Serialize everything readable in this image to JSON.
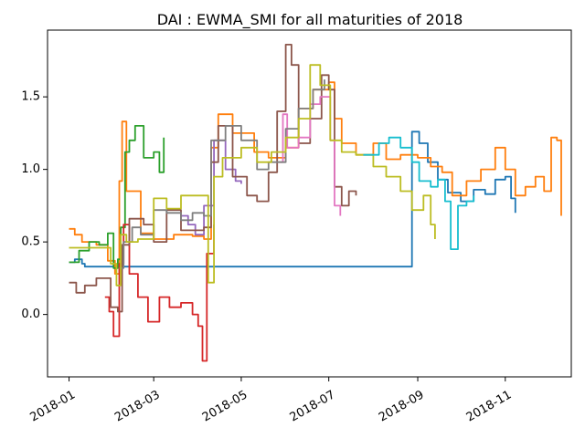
{
  "chart_data": {
    "type": "line",
    "title": "DAI : EWMA_SMI for all maturities of 2018",
    "xlabel": "",
    "ylabel": "",
    "x_ticks": [
      "2018-01",
      "2018-03",
      "2018-05",
      "2018-07",
      "2018-09",
      "2018-11"
    ],
    "y_ticks": [
      0.0,
      0.5,
      1.0,
      1.5
    ],
    "xlim": [
      "2017-12-17",
      "2018-12-17"
    ],
    "ylim": [
      -0.43,
      1.96
    ],
    "grid": false,
    "legend": "none",
    "series": [
      {
        "color": "#1f77b4",
        "points": [
          [
            "2018-01-01",
            0.36
          ],
          [
            "2018-01-05",
            0.38
          ],
          [
            "2018-01-10",
            0.35
          ],
          [
            "2018-01-12",
            0.33
          ],
          [
            "2018-08-28",
            1.26
          ],
          [
            "2018-09-02",
            1.18
          ],
          [
            "2018-09-08",
            1.05
          ],
          [
            "2018-09-15",
            0.93
          ],
          [
            "2018-09-22",
            0.84
          ],
          [
            "2018-10-01",
            0.78
          ],
          [
            "2018-10-10",
            0.86
          ],
          [
            "2018-10-18",
            0.83
          ],
          [
            "2018-10-25",
            0.93
          ],
          [
            "2018-11-01",
            0.95
          ],
          [
            "2018-11-05",
            0.8
          ],
          [
            "2018-11-08",
            0.7
          ]
        ]
      },
      {
        "color": "#ff7f0e",
        "points": [
          [
            "2018-01-01",
            0.59
          ],
          [
            "2018-01-05",
            0.55
          ],
          [
            "2018-01-10",
            0.5
          ],
          [
            "2018-01-20",
            0.48
          ],
          [
            "2018-01-28",
            0.37
          ],
          [
            "2018-02-02",
            0.28
          ],
          [
            "2018-02-05",
            0.92
          ],
          [
            "2018-02-07",
            1.33
          ],
          [
            "2018-02-10",
            0.85
          ],
          [
            "2018-02-20",
            0.56
          ],
          [
            "2018-03-01",
            0.52
          ],
          [
            "2018-03-15",
            0.55
          ],
          [
            "2018-03-28",
            0.54
          ],
          [
            "2018-04-05",
            0.52
          ],
          [
            "2018-04-10",
            1.15
          ],
          [
            "2018-04-15",
            1.38
          ],
          [
            "2018-04-25",
            1.25
          ],
          [
            "2018-05-10",
            1.12
          ],
          [
            "2018-05-20",
            1.08
          ],
          [
            "2018-06-01",
            1.15
          ],
          [
            "2018-06-10",
            1.42
          ],
          [
            "2018-06-20",
            1.55
          ],
          [
            "2018-07-01",
            1.6
          ],
          [
            "2018-07-05",
            1.35
          ],
          [
            "2018-07-10",
            1.18
          ],
          [
            "2018-07-20",
            1.1
          ],
          [
            "2018-08-01",
            1.18
          ],
          [
            "2018-08-10",
            1.07
          ],
          [
            "2018-08-20",
            1.1
          ],
          [
            "2018-09-01",
            1.08
          ],
          [
            "2018-09-10",
            1.02
          ],
          [
            "2018-09-18",
            0.98
          ],
          [
            "2018-09-25",
            0.82
          ],
          [
            "2018-10-05",
            0.92
          ],
          [
            "2018-10-15",
            1.0
          ],
          [
            "2018-10-25",
            1.15
          ],
          [
            "2018-11-01",
            1.0
          ],
          [
            "2018-11-08",
            0.82
          ],
          [
            "2018-11-15",
            0.88
          ],
          [
            "2018-11-22",
            0.95
          ],
          [
            "2018-11-28",
            0.85
          ],
          [
            "2018-12-03",
            1.22
          ],
          [
            "2018-12-07",
            1.2
          ],
          [
            "2018-12-10",
            0.68
          ]
        ]
      },
      {
        "color": "#2ca02c",
        "points": [
          [
            "2018-01-01",
            0.36
          ],
          [
            "2018-01-08",
            0.44
          ],
          [
            "2018-01-15",
            0.5
          ],
          [
            "2018-01-22",
            0.48
          ],
          [
            "2018-01-28",
            0.56
          ],
          [
            "2018-02-01",
            0.32
          ],
          [
            "2018-02-04",
            0.38
          ],
          [
            "2018-02-06",
            0.6
          ],
          [
            "2018-02-09",
            1.12
          ],
          [
            "2018-02-12",
            1.2
          ],
          [
            "2018-02-16",
            1.3
          ],
          [
            "2018-02-22",
            1.08
          ],
          [
            "2018-03-01",
            1.12
          ],
          [
            "2018-03-05",
            0.98
          ],
          [
            "2018-03-08",
            1.22
          ]
        ]
      },
      {
        "color": "#d62728",
        "points": [
          [
            "2018-01-26",
            0.12
          ],
          [
            "2018-01-29",
            0.02
          ],
          [
            "2018-02-01",
            -0.15
          ],
          [
            "2018-02-05",
            0.35
          ],
          [
            "2018-02-08",
            0.62
          ],
          [
            "2018-02-12",
            0.28
          ],
          [
            "2018-02-18",
            0.12
          ],
          [
            "2018-02-25",
            -0.05
          ],
          [
            "2018-03-05",
            0.12
          ],
          [
            "2018-03-12",
            0.05
          ],
          [
            "2018-03-20",
            0.08
          ],
          [
            "2018-03-28",
            0.0
          ],
          [
            "2018-04-01",
            -0.08
          ],
          [
            "2018-04-04",
            -0.32
          ],
          [
            "2018-04-07",
            0.42
          ],
          [
            "2018-04-12",
            0.62
          ]
        ]
      },
      {
        "color": "#9467bd",
        "points": [
          [
            "2018-03-20",
            0.68
          ],
          [
            "2018-03-25",
            0.62
          ],
          [
            "2018-03-30",
            0.55
          ],
          [
            "2018-04-05",
            0.75
          ],
          [
            "2018-04-12",
            1.2
          ],
          [
            "2018-04-20",
            1.0
          ],
          [
            "2018-04-27",
            0.92
          ],
          [
            "2018-05-01",
            0.9
          ]
        ]
      },
      {
        "color": "#8c564b",
        "points": [
          [
            "2018-01-01",
            0.22
          ],
          [
            "2018-01-06",
            0.15
          ],
          [
            "2018-01-12",
            0.2
          ],
          [
            "2018-01-20",
            0.25
          ],
          [
            "2018-01-30",
            0.05
          ],
          [
            "2018-02-04",
            0.02
          ],
          [
            "2018-02-07",
            0.48
          ],
          [
            "2018-02-12",
            0.66
          ],
          [
            "2018-02-22",
            0.62
          ],
          [
            "2018-03-01",
            0.5
          ],
          [
            "2018-03-10",
            0.72
          ],
          [
            "2018-03-20",
            0.58
          ],
          [
            "2018-04-05",
            0.6
          ],
          [
            "2018-04-10",
            1.05
          ],
          [
            "2018-04-15",
            1.3
          ],
          [
            "2018-04-25",
            0.95
          ],
          [
            "2018-05-05",
            0.82
          ],
          [
            "2018-05-12",
            0.78
          ],
          [
            "2018-05-20",
            0.98
          ],
          [
            "2018-05-26",
            1.4
          ],
          [
            "2018-06-01",
            1.86
          ],
          [
            "2018-06-05",
            1.72
          ],
          [
            "2018-06-10",
            1.18
          ],
          [
            "2018-06-18",
            1.35
          ],
          [
            "2018-06-26",
            1.65
          ],
          [
            "2018-07-01",
            1.55
          ],
          [
            "2018-07-05",
            0.88
          ],
          [
            "2018-07-10",
            0.75
          ],
          [
            "2018-07-15",
            0.85
          ],
          [
            "2018-07-20",
            0.82
          ]
        ]
      },
      {
        "color": "#e377c2",
        "points": [
          [
            "2018-05-28",
            1.05
          ],
          [
            "2018-05-30",
            1.38
          ],
          [
            "2018-06-02",
            1.15
          ],
          [
            "2018-06-10",
            1.22
          ],
          [
            "2018-06-18",
            1.45
          ],
          [
            "2018-06-25",
            1.5
          ],
          [
            "2018-07-02",
            1.2
          ],
          [
            "2018-07-05",
            0.75
          ],
          [
            "2018-07-09",
            0.68
          ]
        ]
      },
      {
        "color": "#7f7f7f",
        "points": [
          [
            "2018-02-05",
            0.32
          ],
          [
            "2018-02-08",
            0.5
          ],
          [
            "2018-02-14",
            0.6
          ],
          [
            "2018-02-20",
            0.55
          ],
          [
            "2018-03-01",
            0.72
          ],
          [
            "2018-03-10",
            0.7
          ],
          [
            "2018-03-20",
            0.65
          ],
          [
            "2018-03-28",
            0.7
          ],
          [
            "2018-04-05",
            0.68
          ],
          [
            "2018-04-10",
            1.2
          ],
          [
            "2018-04-20",
            1.3
          ],
          [
            "2018-05-01",
            1.2
          ],
          [
            "2018-05-12",
            1.0
          ],
          [
            "2018-05-20",
            1.05
          ],
          [
            "2018-06-01",
            1.28
          ],
          [
            "2018-06-10",
            1.42
          ],
          [
            "2018-06-20",
            1.55
          ],
          [
            "2018-06-28",
            1.62
          ]
        ]
      },
      {
        "color": "#bcbd22",
        "points": [
          [
            "2018-01-01",
            0.46
          ],
          [
            "2018-01-15",
            0.46
          ],
          [
            "2018-01-25",
            0.46
          ],
          [
            "2018-01-30",
            0.35
          ],
          [
            "2018-02-03",
            0.2
          ],
          [
            "2018-02-06",
            0.55
          ],
          [
            "2018-02-10",
            0.5
          ],
          [
            "2018-02-18",
            0.52
          ],
          [
            "2018-03-01",
            0.8
          ],
          [
            "2018-03-10",
            0.73
          ],
          [
            "2018-03-20",
            0.82
          ],
          [
            "2018-04-01",
            0.82
          ],
          [
            "2018-04-08",
            0.22
          ],
          [
            "2018-04-12",
            0.95
          ],
          [
            "2018-04-18",
            1.08
          ],
          [
            "2018-05-01",
            1.15
          ],
          [
            "2018-05-12",
            1.05
          ],
          [
            "2018-05-22",
            1.12
          ],
          [
            "2018-06-01",
            1.22
          ],
          [
            "2018-06-10",
            1.35
          ],
          [
            "2018-06-18",
            1.72
          ],
          [
            "2018-06-25",
            1.58
          ],
          [
            "2018-07-02",
            1.2
          ],
          [
            "2018-07-10",
            1.12
          ],
          [
            "2018-07-20",
            1.1
          ],
          [
            "2018-08-01",
            1.02
          ],
          [
            "2018-08-10",
            0.95
          ],
          [
            "2018-08-20",
            0.85
          ],
          [
            "2018-08-28",
            0.72
          ],
          [
            "2018-09-05",
            0.82
          ],
          [
            "2018-09-10",
            0.62
          ],
          [
            "2018-09-13",
            0.52
          ]
        ]
      },
      {
        "color": "#17becf",
        "points": [
          [
            "2018-07-25",
            1.1
          ],
          [
            "2018-08-05",
            1.18
          ],
          [
            "2018-08-12",
            1.22
          ],
          [
            "2018-08-20",
            1.15
          ],
          [
            "2018-08-28",
            1.05
          ],
          [
            "2018-09-02",
            0.92
          ],
          [
            "2018-09-10",
            0.88
          ],
          [
            "2018-09-15",
            0.93
          ],
          [
            "2018-09-20",
            0.78
          ],
          [
            "2018-09-24",
            0.45
          ],
          [
            "2018-09-27",
            0.45
          ],
          [
            "2018-09-29",
            0.75
          ],
          [
            "2018-10-05",
            0.78
          ],
          [
            "2018-10-10",
            0.82
          ]
        ]
      }
    ]
  }
}
